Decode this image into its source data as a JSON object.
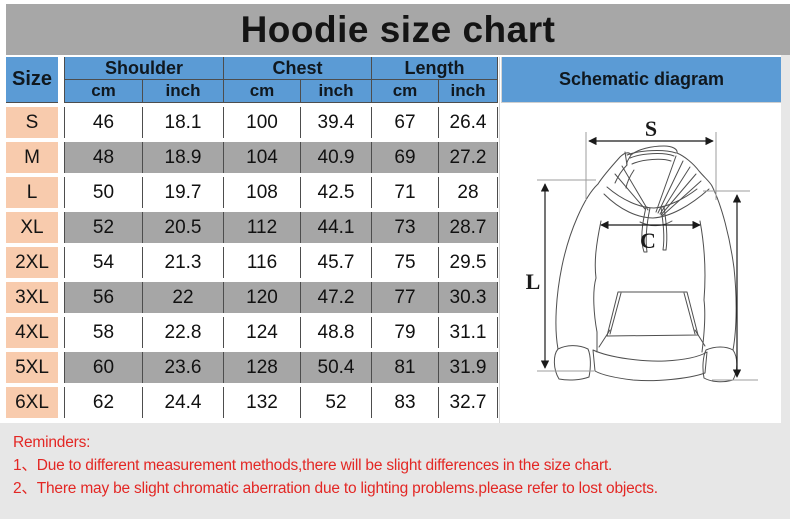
{
  "title": "Hoodie size chart",
  "table": {
    "size_header": "Size",
    "groups": [
      {
        "label": "Shoulder"
      },
      {
        "label": "Chest"
      },
      {
        "label": "Length"
      }
    ],
    "unit_headers": [
      "cm",
      "inch",
      "cm",
      "inch",
      "cm",
      "inch"
    ],
    "schematic_header": "Schematic diagram",
    "rows": [
      {
        "size": "S",
        "values": [
          "46",
          "18.1",
          "100",
          "39.4",
          "67",
          "26.4"
        ]
      },
      {
        "size": "M",
        "values": [
          "48",
          "18.9",
          "104",
          "40.9",
          "69",
          "27.2"
        ]
      },
      {
        "size": "L",
        "values": [
          "50",
          "19.7",
          "108",
          "42.5",
          "71",
          "28"
        ]
      },
      {
        "size": "XL",
        "values": [
          "52",
          "20.5",
          "112",
          "44.1",
          "73",
          "28.7"
        ]
      },
      {
        "size": "2XL",
        "values": [
          "54",
          "21.3",
          "116",
          "45.7",
          "75",
          "29.5"
        ]
      },
      {
        "size": "3XL",
        "values": [
          "56",
          "22",
          "120",
          "47.2",
          "77",
          "30.3"
        ]
      },
      {
        "size": "4XL",
        "values": [
          "58",
          "22.8",
          "124",
          "48.8",
          "79",
          "31.1"
        ]
      },
      {
        "size": "5XL",
        "values": [
          "60",
          "23.6",
          "128",
          "50.4",
          "81",
          "31.9"
        ]
      },
      {
        "size": "6XL",
        "values": [
          "62",
          "24.4",
          "132",
          "52",
          "83",
          "32.7"
        ]
      }
    ]
  },
  "schematic": {
    "labels": {
      "shoulder": "S",
      "chest": "C",
      "length": "L"
    }
  },
  "reminders": {
    "heading": "Reminders:",
    "items": [
      "1、Due to different measurement methods,there will be slight differences in the size chart.",
      "2、There may be slight chromatic aberration due to lighting problems.please refer to lost objects."
    ]
  },
  "colors": {
    "header_blue": "#5b9bd5",
    "size_column_peach": "#f8cbad",
    "row_gray": "#a6a6a6",
    "title_band_gray": "#a7a7a7",
    "reminder_red": "#e32724",
    "page_gray": "#e7e7e7"
  }
}
